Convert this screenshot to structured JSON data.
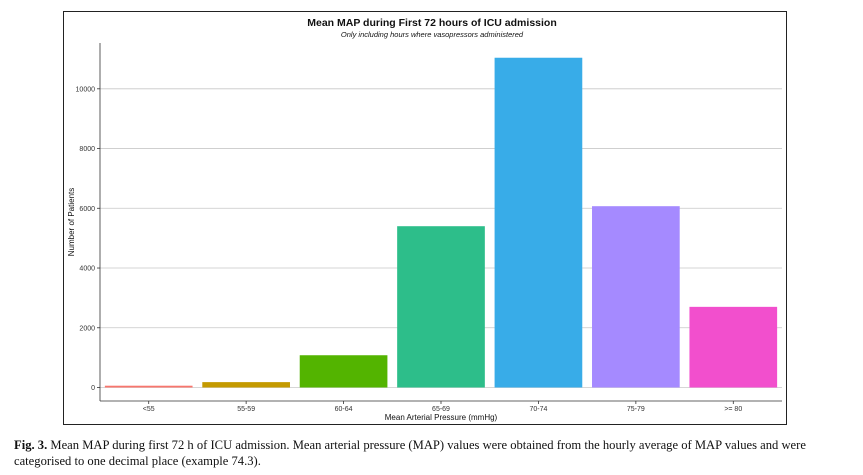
{
  "chart_data": {
    "type": "bar",
    "title": "Mean MAP during First 72 hours of ICU admission",
    "subtitle": "Only including hours where vasopressors administered",
    "xlabel": "Mean Arterial Pressure (mmHg)",
    "ylabel": "Number of Patients",
    "categories": [
      "<55",
      "55-59",
      "60-64",
      "65-69",
      "70-74",
      "75-79",
      ">= 80"
    ],
    "values": [
      60,
      180,
      1080,
      5400,
      11040,
      6070,
      2700
    ],
    "colors": [
      "#F8766D",
      "#C49A00",
      "#53B400",
      "#2DBE8A",
      "#38ACE8",
      "#A58AFF",
      "#F24FCD"
    ],
    "ylim": [
      0,
      11500
    ],
    "yticks": [
      0,
      2000,
      4000,
      6000,
      8000,
      10000
    ],
    "grid": "horizontal major lines",
    "legend": "none"
  },
  "caption": {
    "label": "Fig. 3.",
    "text": "Mean MAP during first 72 h of ICU admission. Mean arterial pressure (MAP) values were obtained from the hourly average of MAP values and were categorised to one decimal place (example 74.3)."
  }
}
